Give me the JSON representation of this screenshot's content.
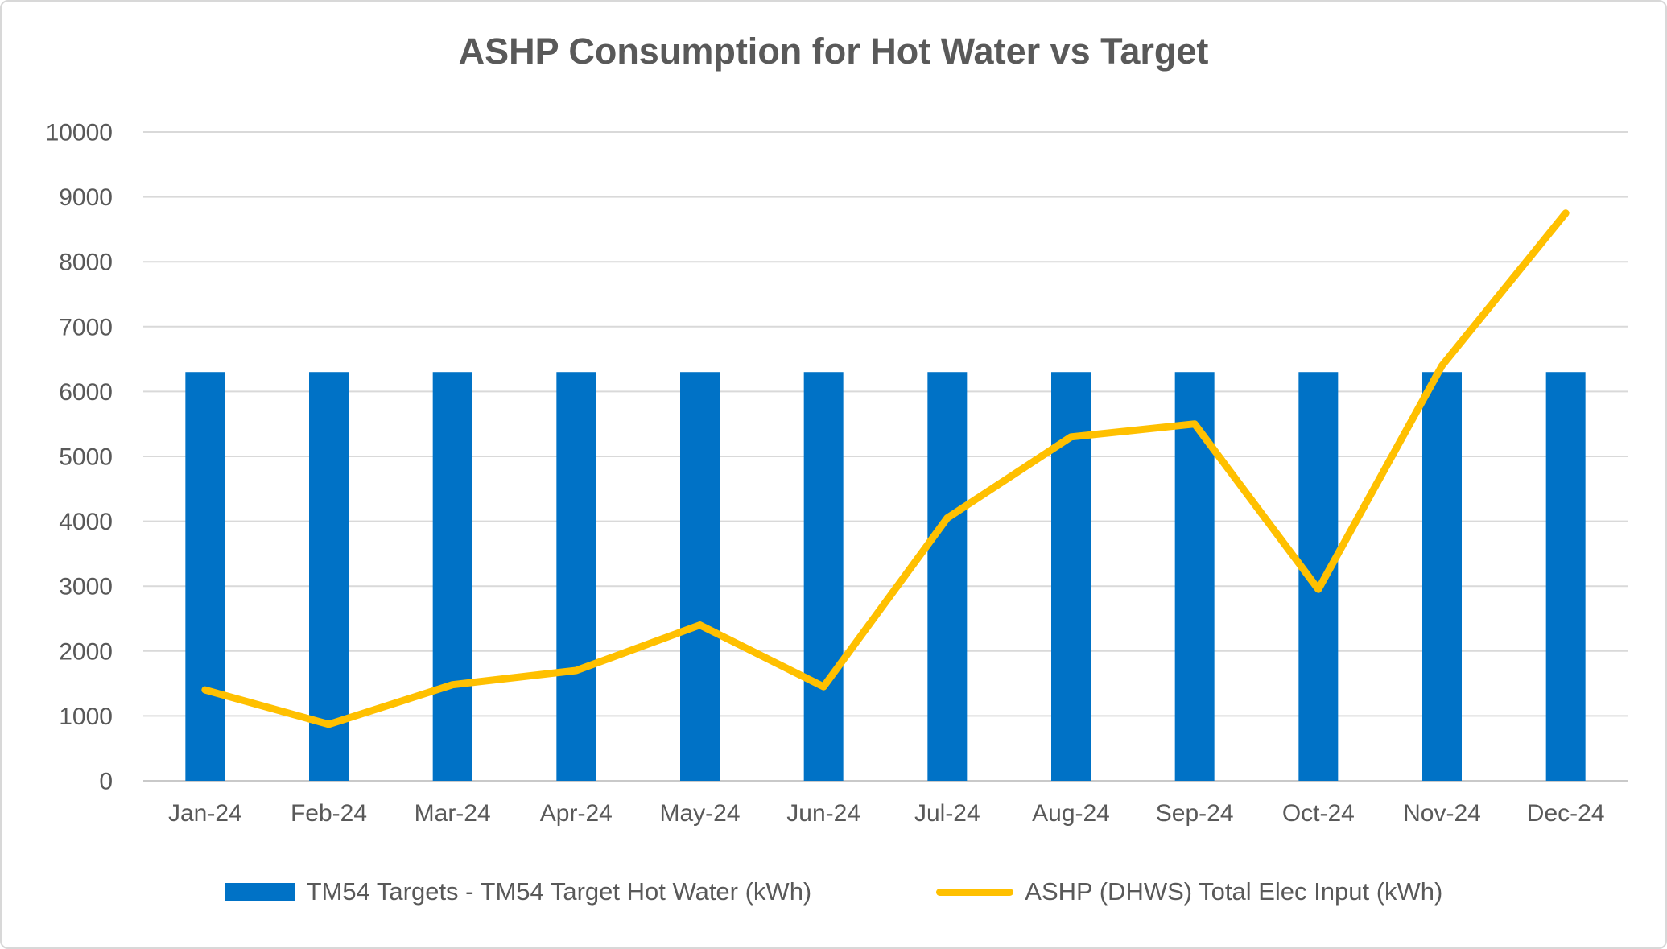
{
  "window": {
    "background": "#ffffff",
    "border_color": "#d8d8d8"
  },
  "chart_data": {
    "type": "combo-bar-line",
    "title": "ASHP Consumption for Hot Water vs Target",
    "categories": [
      "Jan-24",
      "Feb-24",
      "Mar-24",
      "Apr-24",
      "May-24",
      "Jun-24",
      "Jul-24",
      "Aug-24",
      "Sep-24",
      "Oct-24",
      "Nov-24",
      "Dec-24"
    ],
    "series": [
      {
        "name": "TM54 Targets - TM54 Target Hot Water (kWh)",
        "type": "bar",
        "color": "#0072C6",
        "values": [
          6300,
          6300,
          6300,
          6300,
          6300,
          6300,
          6300,
          6300,
          6300,
          6300,
          6300,
          6300
        ]
      },
      {
        "name": "ASHP (DHWS) Total Elec Input (kWh)",
        "type": "line",
        "color": "#FFC000",
        "values": [
          1400,
          870,
          1480,
          1700,
          2400,
          1450,
          4050,
          5300,
          5500,
          2950,
          6400,
          8750
        ]
      }
    ],
    "ylim": [
      0,
      10000
    ],
    "ytick_step": 1000,
    "grid": true,
    "legend_position": "bottom",
    "text_color": "#595959",
    "gridline_color": "#D9D9D9",
    "zero_line_color": "#C9C9C9"
  }
}
